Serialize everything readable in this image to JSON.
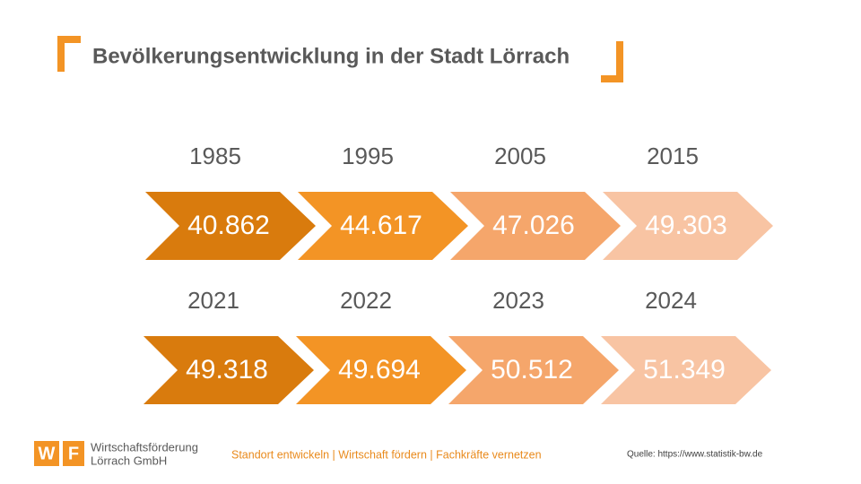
{
  "header": {
    "title": "Bevölkerungsentwicklung in der Stadt Lörrach"
  },
  "rows": [
    [
      {
        "year": "1985",
        "value": "40.862"
      },
      {
        "year": "1995",
        "value": "44.617"
      },
      {
        "year": "2005",
        "value": "47.026"
      },
      {
        "year": "2015",
        "value": "49.303"
      }
    ],
    [
      {
        "year": "2021",
        "value": "49.318"
      },
      {
        "year": "2022",
        "value": "49.694"
      },
      {
        "year": "2023",
        "value": "50.512"
      },
      {
        "year": "2024",
        "value": "51.349"
      }
    ]
  ],
  "colors": [
    "#d97b0d",
    "#f39425",
    "#f5a66b",
    "#f8c4a3"
  ],
  "footer": {
    "logo_letters": [
      "W",
      "F"
    ],
    "organization": [
      "Wirtschaftsförderung",
      "Lörrach GmbH"
    ],
    "tagline": "Standort entwickeln | Wirtschaft fördern | Fachkräfte vernetzen",
    "source": "Quelle: https://www.statistik-bw.de"
  }
}
